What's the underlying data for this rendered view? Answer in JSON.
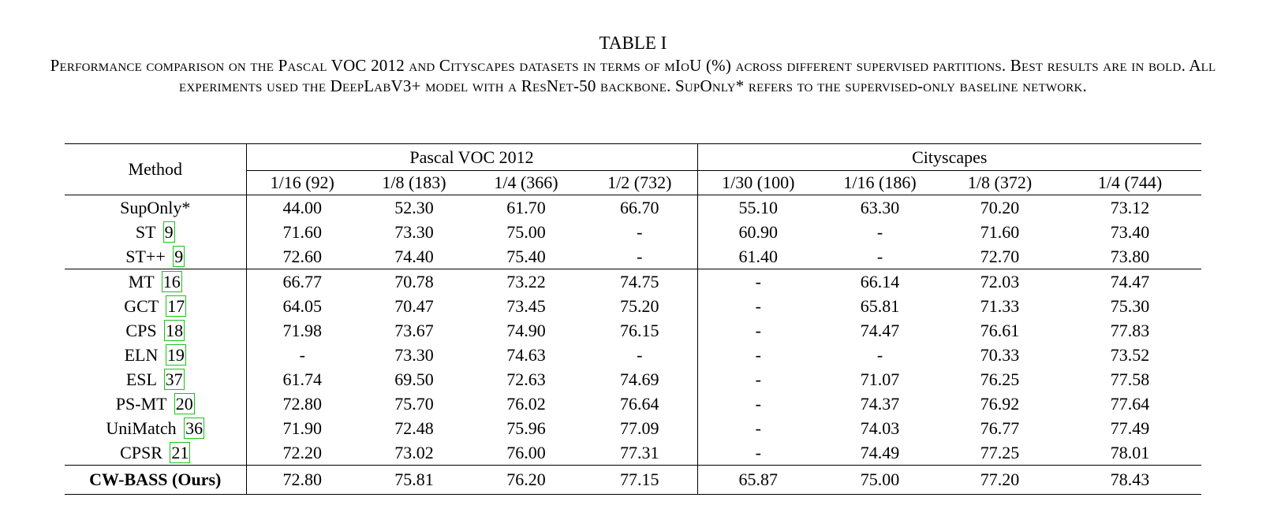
{
  "caption": {
    "title": "TABLE I",
    "text": "Performance comparison on the Pascal VOC 2012 and Cityscapes datasets in terms of mIoU (%) across different supervised partitions. Best results are in bold. All experiments used the DeepLabV3+ model with a ResNet-50 backbone. SupOnly* refers to the supervised-only baseline network."
  },
  "table": {
    "method_header": "Method",
    "groups": [
      "Pascal  VOC  2012",
      "Cityscapes"
    ],
    "partitions": [
      "1/16 (92)",
      "1/8 (183)",
      "1/4 (366)",
      "1/2 (732)",
      "1/30 (100)",
      "1/16 (186)",
      "1/8 (372)",
      "1/4 (744)"
    ],
    "rows": [
      {
        "name": "SupOnly*",
        "ref": "",
        "values": [
          "44.00",
          "52.30",
          "61.70",
          "66.70",
          "55.10",
          "63.30",
          "70.20",
          "73.12"
        ]
      },
      {
        "name": "ST",
        "ref": "9",
        "values": [
          "71.60",
          "73.30",
          "75.00",
          "-",
          "60.90",
          "-",
          "71.60",
          "73.40"
        ]
      },
      {
        "name": "ST++",
        "ref": "9",
        "values": [
          "72.60",
          "74.40",
          "75.40",
          "-",
          "61.40",
          "-",
          "72.70",
          "73.80"
        ]
      },
      {
        "name": "MT",
        "ref": "16",
        "values": [
          "66.77",
          "70.78",
          "73.22",
          "74.75",
          "-",
          "66.14",
          "72.03",
          "74.47"
        ]
      },
      {
        "name": "GCT",
        "ref": "17",
        "values": [
          "64.05",
          "70.47",
          "73.45",
          "75.20",
          "-",
          "65.81",
          "71.33",
          "75.30"
        ]
      },
      {
        "name": "CPS",
        "ref": "18",
        "values": [
          "71.98",
          "73.67",
          "74.90",
          "76.15",
          "-",
          "74.47",
          "76.61",
          "77.83"
        ]
      },
      {
        "name": "ELN",
        "ref": "19",
        "values": [
          "-",
          "73.30",
          "74.63",
          "-",
          "-",
          "-",
          "70.33",
          "73.52"
        ]
      },
      {
        "name": "ESL",
        "ref": "37",
        "values": [
          "61.74",
          "69.50",
          "72.63",
          "74.69",
          "-",
          "71.07",
          "76.25",
          "77.58"
        ]
      },
      {
        "name": "PS-MT",
        "ref": "20",
        "values": [
          "72.80",
          "75.70",
          "76.02",
          "76.64",
          "-",
          "74.37",
          "76.92",
          "77.64"
        ]
      },
      {
        "name": "UniMatch",
        "ref": "36",
        "values": [
          "71.90",
          "72.48",
          "75.96",
          "77.09",
          "-",
          "74.03",
          "76.77",
          "77.49"
        ]
      },
      {
        "name": "CPSR",
        "ref": "21",
        "values": [
          "72.20",
          "73.02",
          "76.00",
          "77.31",
          "-",
          "74.49",
          "77.25",
          "78.01"
        ],
        "bold": [
          3,
          6
        ]
      },
      {
        "name": "CW-BASS (Ours)",
        "ref": "",
        "values": [
          "72.80",
          "75.81",
          "76.20",
          "77.15",
          "65.87",
          "75.00",
          "77.20",
          "78.43"
        ],
        "bold": [
          0,
          1,
          2,
          4,
          5,
          7
        ],
        "bold_name": true
      }
    ],
    "separators_after": [
      2
    ]
  }
}
